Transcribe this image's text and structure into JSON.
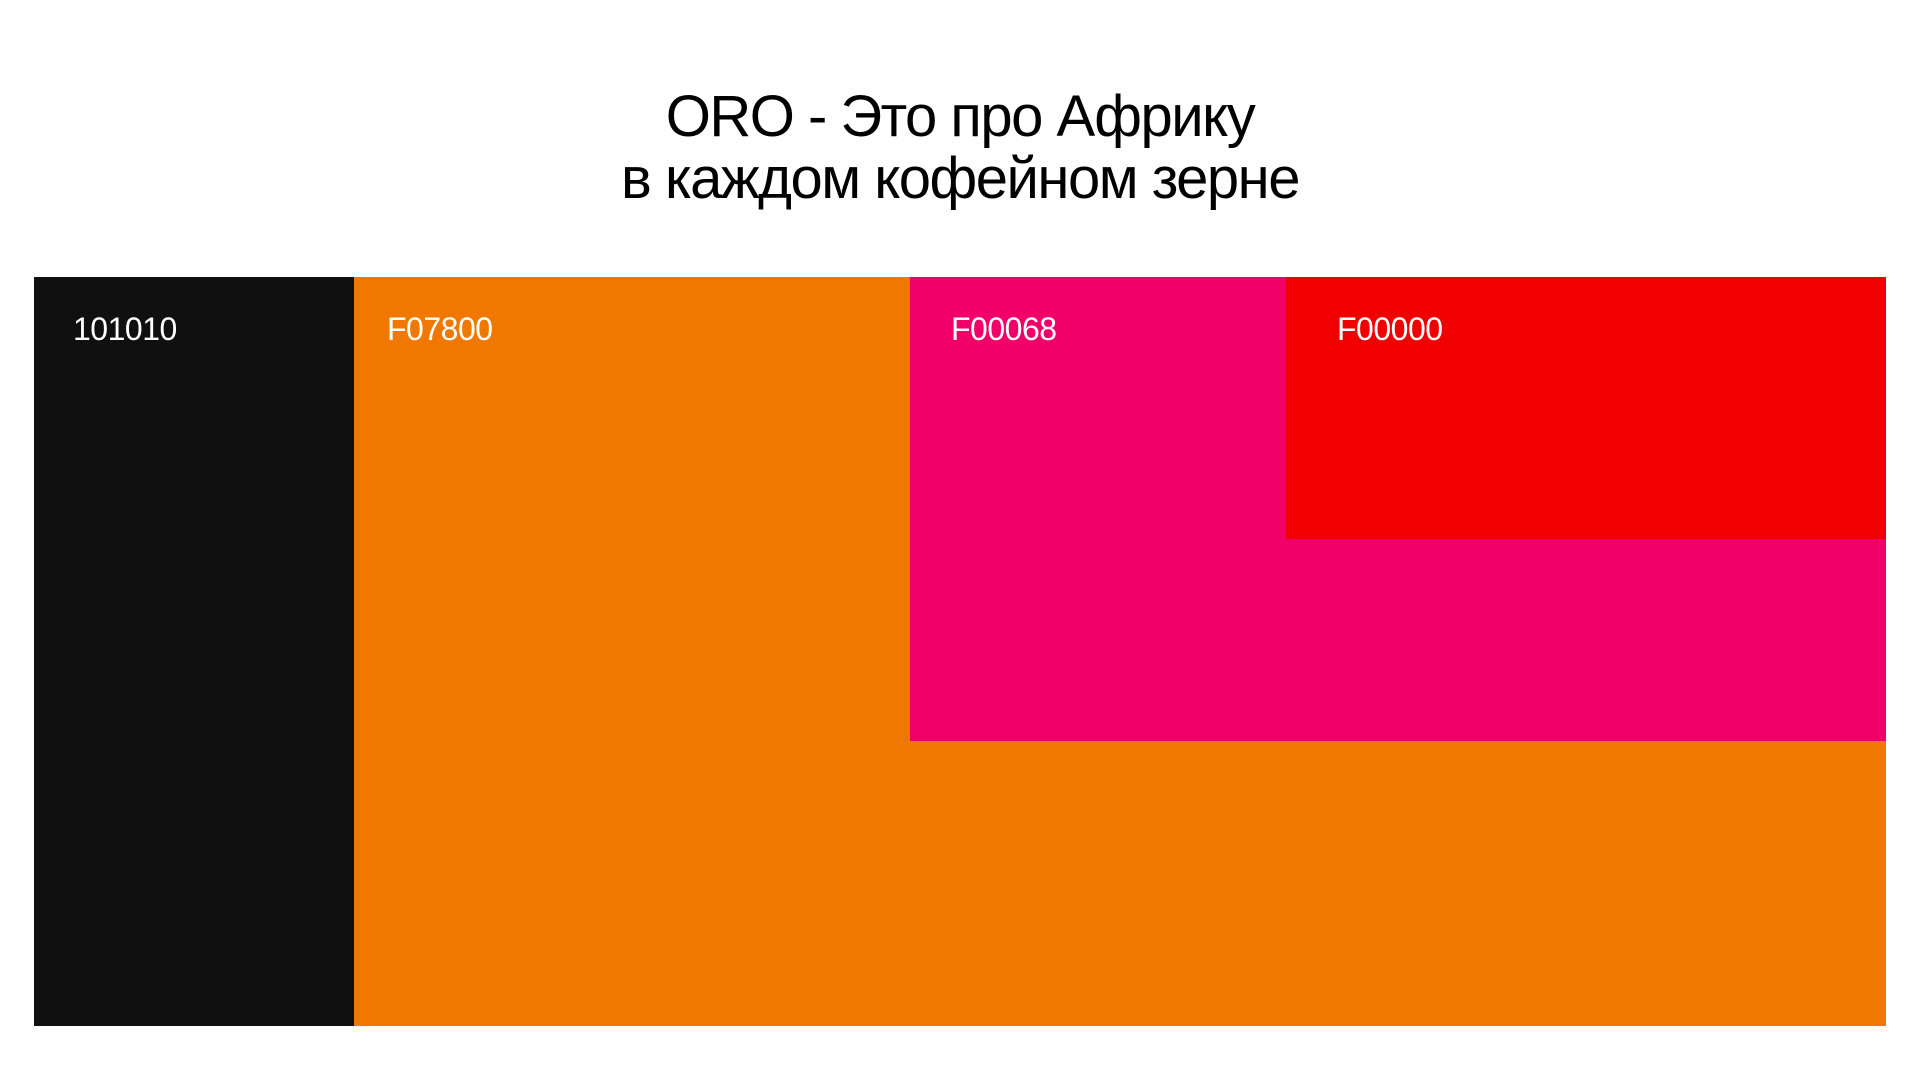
{
  "header": {
    "title": [
      "ORO - Это про Африку",
      "в каждом кофейном зерне"
    ]
  },
  "swatches": [
    {
      "label": "101010"
    },
    {
      "label": "F07800"
    },
    {
      "label": "F00068"
    },
    {
      "label": "F00000"
    }
  ]
}
